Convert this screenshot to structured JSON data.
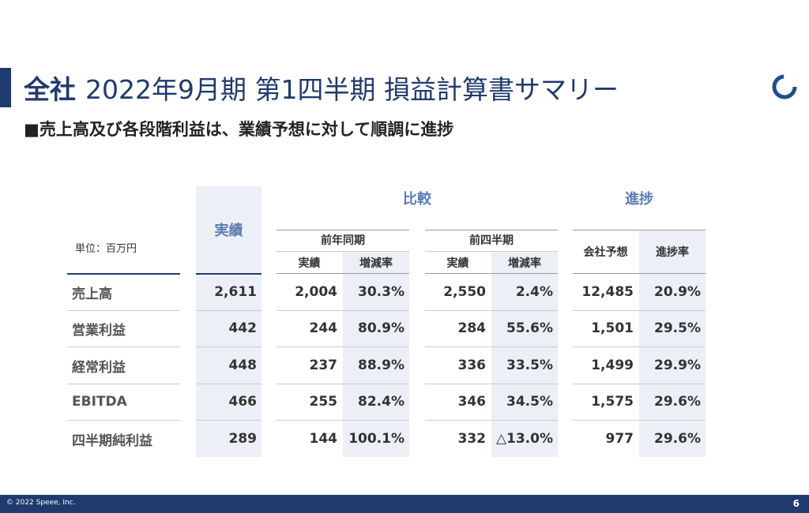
{
  "header": {
    "title_bold": "全社",
    "title": "2022年9月期 第1四半期 損益計算書サマリー",
    "subtitle": "■売上高及び各段階利益は、業績予想に対して順調に進捗"
  },
  "table": {
    "unit": "単位：百万円",
    "actual": "実績",
    "compare": "比較",
    "progress": "進捗",
    "prev_year": "前年同期",
    "prev_quarter": "前四半期",
    "sub_headers": [
      "実績",
      "増減率",
      "実績",
      "増減率",
      "会社予想",
      "進捗率"
    ],
    "rows": [
      [
        "売上高",
        "2,611",
        "2,004",
        "30.3%",
        "2,550",
        "2.4%",
        "12,485",
        "20.9%"
      ],
      [
        "営業利益",
        "442",
        "244",
        "80.9%",
        "284",
        "55.6%",
        "1,501",
        "29.5%"
      ],
      [
        "経常利益",
        "448",
        "237",
        "88.9%",
        "336",
        "33.5%",
        "1,499",
        "29.9%"
      ],
      [
        "EBITDA",
        "466",
        "255",
        "82.4%",
        "346",
        "34.5%",
        "1,575",
        "29.6%"
      ],
      [
        "四半期純利益",
        "289",
        "144",
        "100.1%",
        "332",
        "△13.0%",
        "977",
        "29.6%"
      ]
    ]
  },
  "footer": {
    "copyright": "© 2022 Speee, Inc.",
    "page": "6"
  }
}
